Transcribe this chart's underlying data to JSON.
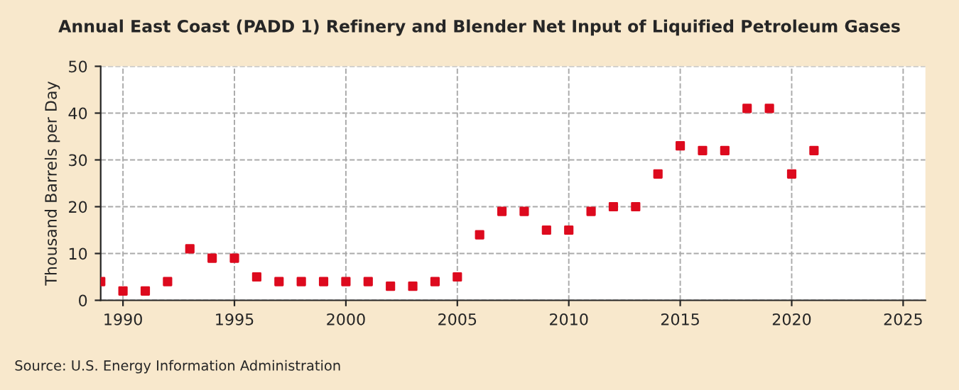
{
  "chart_data": {
    "type": "scatter",
    "title": "Annual East Coast (PADD 1) Refinery and Blender Net Input of Liquified Petroleum Gases",
    "ylabel": "Thousand Barrels per Day",
    "x": [
      1989,
      1990,
      1991,
      1992,
      1993,
      1994,
      1995,
      1996,
      1997,
      1998,
      1999,
      2000,
      2001,
      2002,
      2003,
      2004,
      2005,
      2006,
      2007,
      2008,
      2009,
      2010,
      2011,
      2012,
      2013,
      2014,
      2015,
      2016,
      2017,
      2018,
      2019,
      2020,
      2021
    ],
    "series": [
      {
        "color": "#dd0a1e",
        "values": [
          4,
          2,
          2,
          4,
          11,
          9,
          9,
          5,
          4,
          4,
          4,
          4,
          4,
          3,
          3,
          4,
          5,
          14,
          19,
          19,
          15,
          15,
          19,
          20,
          20,
          27,
          33,
          32,
          32,
          41,
          41,
          27,
          32
        ]
      }
    ],
    "xlim": [
      1989,
      2026
    ],
    "xticks": [
      1990,
      1995,
      2000,
      2005,
      2010,
      2015,
      2020,
      2025
    ],
    "ylim": [
      0,
      50
    ],
    "yticks": [
      0,
      10,
      20,
      30,
      40,
      50
    ],
    "grid": true,
    "marker": "square",
    "annotations": [
      "Source: U.S. Energy Information Administration"
    ]
  }
}
